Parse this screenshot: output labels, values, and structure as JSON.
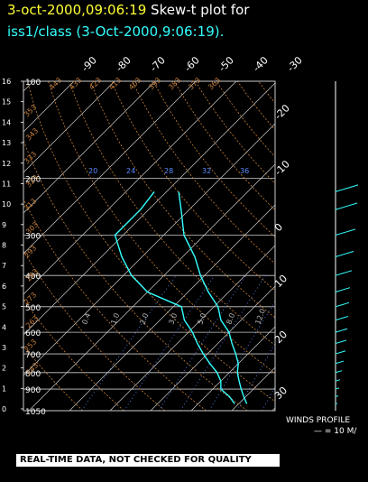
{
  "title": {
    "date": "3-oct-2000,09:06:19",
    "plot_label": "Skew-t plot for",
    "subtitle": "iss1/class (3-Oct-2000,9:06:19)."
  },
  "colors": {
    "profile": "#33ffff",
    "date_text": "#ffff33",
    "dry_adiabat": "#c8823c",
    "mixing_ratio": "#5a8cff",
    "isotherm": "#cccccc"
  },
  "footer": {
    "winds_label": "WINDS PROFILE",
    "winds_scale": "— = 10 M/",
    "banner": "REAL-TIME DATA, NOT CHECKED FOR QUALITY"
  },
  "chart_data": {
    "type": "line",
    "title": "Skew-t plot for",
    "yaxis_left_ticks": [
      "0",
      "1",
      "2",
      "3",
      "4",
      "5",
      "6",
      "7",
      "8",
      "9",
      "10",
      "11",
      "12",
      "13",
      "14",
      "15",
      "16"
    ],
    "pressure_levels": [
      "100",
      "200",
      "300",
      "400",
      "500",
      "600",
      "700",
      "800",
      "900",
      "1050"
    ],
    "top_temperature_ticks": [
      "-90",
      "-80",
      "-70",
      "-60",
      "-50",
      "-40",
      "-30"
    ],
    "right_temperature_ticks": [
      "-20",
      "-10",
      "0",
      "10",
      "20",
      "30"
    ],
    "mixing_ratio_labels": [
      "20",
      "24",
      "28",
      "32",
      "36"
    ],
    "dry_adiabat_labels": [
      "443",
      "433",
      "423",
      "413",
      "403",
      "393",
      "383",
      "373",
      "363",
      "353",
      "343",
      "333",
      "323",
      "313",
      "303",
      "293",
      "283",
      "273",
      "263",
      "253",
      "243"
    ],
    "stability_labels": [
      "0.4",
      "1.0",
      "2.0",
      "3.0",
      "5.0",
      "8.0",
      "12.0"
    ],
    "series": [
      {
        "values": [
          {
            "p": 1000,
            "t": 12.0
          },
          {
            "p": 950,
            "t": 9.5
          },
          {
            "p": 900,
            "t": 7.0
          },
          {
            "p": 850,
            "t": 4.5
          },
          {
            "p": 800,
            "t": 2.0
          },
          {
            "p": 750,
            "t": 0.0
          },
          {
            "p": 700,
            "t": -3.0
          },
          {
            "p": 650,
            "t": -6.5
          },
          {
            "p": 600,
            "t": -10.0
          },
          {
            "p": 550,
            "t": -15.0
          },
          {
            "p": 500,
            "t": -19.0
          },
          {
            "p": 450,
            "t": -25.0
          },
          {
            "p": 400,
            "t": -31.0
          },
          {
            "p": 350,
            "t": -37.0
          },
          {
            "p": 300,
            "t": -45.0
          },
          {
            "p": 250,
            "t": -52.0
          },
          {
            "p": 220,
            "t": -57.0
          }
        ]
      },
      {
        "values": [
          {
            "p": 1000,
            "t": 9.0
          },
          {
            "p": 950,
            "t": 6.0
          },
          {
            "p": 900,
            "t": 2.0
          },
          {
            "p": 850,
            "t": 0.0
          },
          {
            "p": 800,
            "t": -3.0
          },
          {
            "p": 750,
            "t": -7.0
          },
          {
            "p": 700,
            "t": -11.0
          },
          {
            "p": 650,
            "t": -15.0
          },
          {
            "p": 600,
            "t": -19.0
          },
          {
            "p": 550,
            "t": -24.0
          },
          {
            "p": 500,
            "t": -28.0
          },
          {
            "p": 450,
            "t": -40.0
          },
          {
            "p": 400,
            "t": -48.0
          },
          {
            "p": 350,
            "t": -55.0
          },
          {
            "p": 300,
            "t": -62.0
          },
          {
            "p": 250,
            "t": -62.0
          },
          {
            "p": 220,
            "t": -63.0
          }
        ]
      }
    ],
    "winds": [
      {
        "p": 1000,
        "speed": 2
      },
      {
        "p": 950,
        "speed": 3
      },
      {
        "p": 900,
        "speed": 4
      },
      {
        "p": 850,
        "speed": 5
      },
      {
        "p": 800,
        "speed": 7
      },
      {
        "p": 750,
        "speed": 9
      },
      {
        "p": 700,
        "speed": 11
      },
      {
        "p": 650,
        "speed": 12
      },
      {
        "p": 600,
        "speed": 13
      },
      {
        "p": 550,
        "speed": 14
      },
      {
        "p": 500,
        "speed": 15
      },
      {
        "p": 450,
        "speed": 16
      },
      {
        "p": 400,
        "speed": 18
      },
      {
        "p": 350,
        "speed": 20
      },
      {
        "p": 300,
        "speed": 22
      },
      {
        "p": 250,
        "speed": 24
      },
      {
        "p": 220,
        "speed": 25
      }
    ]
  }
}
